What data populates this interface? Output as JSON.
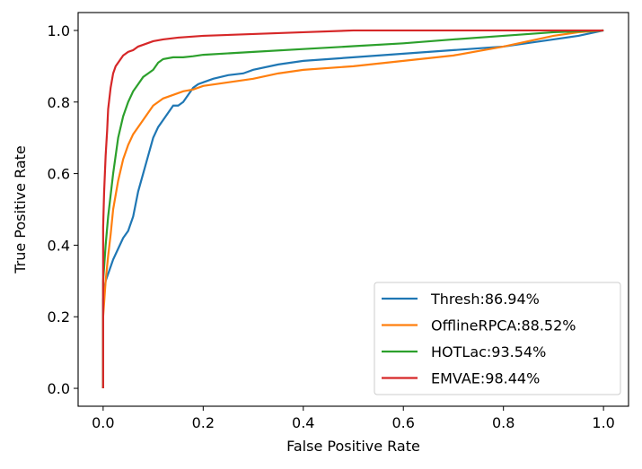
{
  "chart_data": {
    "type": "line",
    "xlabel": "False Positive Rate",
    "ylabel": "True Positive Rate",
    "xlim": [
      -0.05,
      1.05
    ],
    "ylim": [
      -0.05,
      1.05
    ],
    "xticks": [
      "0.0",
      "0.2",
      "0.4",
      "0.6",
      "0.8",
      "1.0"
    ],
    "yticks": [
      "0.0",
      "0.2",
      "0.4",
      "0.6",
      "0.8",
      "1.0"
    ],
    "grid": false,
    "legend_position": "lower-right",
    "series": [
      {
        "name": "Thresh:86.94%",
        "color": "#1f77b4",
        "x": [
          0.0,
          0.0,
          0.005,
          0.01,
          0.015,
          0.02,
          0.03,
          0.04,
          0.05,
          0.06,
          0.07,
          0.08,
          0.09,
          0.1,
          0.11,
          0.12,
          0.13,
          0.14,
          0.15,
          0.16,
          0.17,
          0.18,
          0.19,
          0.2,
          0.21,
          0.22,
          0.25,
          0.28,
          0.3,
          0.35,
          0.4,
          0.5,
          0.6,
          0.7,
          0.8,
          0.9,
          0.95,
          1.0
        ],
        "y": [
          0.0,
          0.25,
          0.3,
          0.32,
          0.34,
          0.36,
          0.39,
          0.42,
          0.44,
          0.48,
          0.55,
          0.6,
          0.65,
          0.7,
          0.73,
          0.75,
          0.77,
          0.79,
          0.79,
          0.8,
          0.82,
          0.84,
          0.85,
          0.855,
          0.86,
          0.865,
          0.875,
          0.88,
          0.89,
          0.905,
          0.915,
          0.925,
          0.935,
          0.945,
          0.955,
          0.975,
          0.985,
          1.0
        ]
      },
      {
        "name": "OfflineRPCA:88.52%",
        "color": "#ff7f0e",
        "x": [
          0.0,
          0.0,
          0.005,
          0.01,
          0.015,
          0.02,
          0.03,
          0.04,
          0.05,
          0.06,
          0.07,
          0.08,
          0.09,
          0.1,
          0.12,
          0.14,
          0.16,
          0.18,
          0.2,
          0.25,
          0.3,
          0.35,
          0.4,
          0.5,
          0.6,
          0.7,
          0.8,
          0.9,
          0.95,
          1.0
        ],
        "y": [
          0.0,
          0.2,
          0.3,
          0.37,
          0.43,
          0.5,
          0.58,
          0.64,
          0.68,
          0.71,
          0.73,
          0.75,
          0.77,
          0.79,
          0.81,
          0.82,
          0.83,
          0.835,
          0.845,
          0.855,
          0.865,
          0.88,
          0.89,
          0.9,
          0.915,
          0.93,
          0.955,
          0.985,
          0.995,
          1.0
        ]
      },
      {
        "name": "HOTLac:93.54%",
        "color": "#2ca02c",
        "x": [
          0.0,
          0.0,
          0.005,
          0.01,
          0.015,
          0.02,
          0.025,
          0.03,
          0.04,
          0.05,
          0.06,
          0.07,
          0.08,
          0.09,
          0.1,
          0.11,
          0.12,
          0.14,
          0.16,
          0.18,
          0.2,
          0.3,
          0.4,
          0.5,
          0.6,
          0.7,
          0.8,
          0.9,
          1.0
        ],
        "y": [
          0.0,
          0.3,
          0.4,
          0.48,
          0.54,
          0.6,
          0.65,
          0.7,
          0.76,
          0.8,
          0.83,
          0.85,
          0.87,
          0.88,
          0.89,
          0.91,
          0.92,
          0.925,
          0.925,
          0.928,
          0.932,
          0.94,
          0.948,
          0.956,
          0.964,
          0.975,
          0.985,
          0.995,
          1.0
        ]
      },
      {
        "name": "EMVAE:98.44%",
        "color": "#d62728",
        "x": [
          0.0,
          0.0,
          0.002,
          0.005,
          0.008,
          0.01,
          0.015,
          0.02,
          0.025,
          0.03,
          0.04,
          0.05,
          0.06,
          0.07,
          0.08,
          0.09,
          0.1,
          0.12,
          0.15,
          0.2,
          0.3,
          0.4,
          0.5,
          0.6,
          0.8,
          1.0
        ],
        "y": [
          0.0,
          0.45,
          0.55,
          0.65,
          0.72,
          0.78,
          0.84,
          0.88,
          0.9,
          0.91,
          0.93,
          0.94,
          0.945,
          0.955,
          0.96,
          0.965,
          0.97,
          0.975,
          0.98,
          0.985,
          0.99,
          0.995,
          1.0,
          1.0,
          1.0,
          1.0
        ]
      }
    ]
  }
}
